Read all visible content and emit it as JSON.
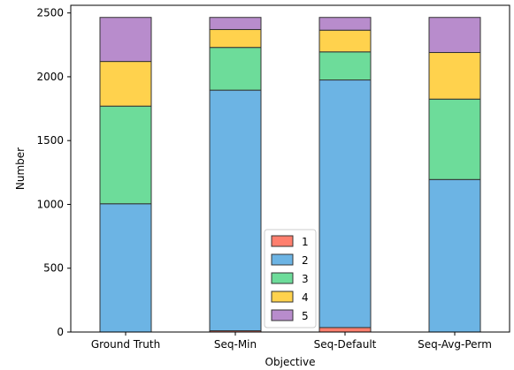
{
  "chart_data": {
    "type": "bar",
    "stacked": true,
    "title": "",
    "xlabel": "Objective",
    "ylabel": "Number",
    "ylim": [
      0,
      2560
    ],
    "yticks": [
      0,
      500,
      1000,
      1500,
      2000,
      2500
    ],
    "ytick_labels": [
      "0",
      "500",
      "1000",
      "1500",
      "2000",
      "2500"
    ],
    "categories": [
      "Ground Truth",
      "Seq-Min",
      "Seq-Default",
      "Seq-Avg-Perm"
    ],
    "series": [
      {
        "name": "1",
        "color": "#ff7f6e",
        "values": [
          0,
          10,
          35,
          0
        ]
      },
      {
        "name": "2",
        "color": "#6cb4e4",
        "values": [
          1005,
          1885,
          1940,
          1195
        ]
      },
      {
        "name": "3",
        "color": "#6ddc9a",
        "values": [
          765,
          335,
          220,
          630
        ]
      },
      {
        "name": "4",
        "color": "#ffd24d",
        "values": [
          350,
          140,
          170,
          365
        ]
      },
      {
        "name": "5",
        "color": "#b88ccc",
        "values": [
          345,
          95,
          100,
          275
        ]
      }
    ],
    "legend": {
      "position": "bottom-center"
    },
    "grid": false
  }
}
